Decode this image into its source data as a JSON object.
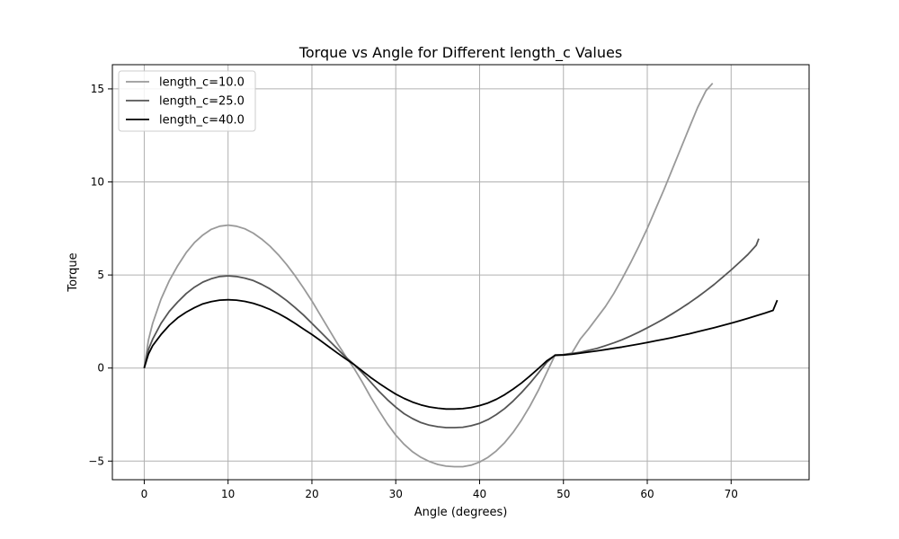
{
  "chart_data": {
    "type": "line",
    "title": "Torque vs Angle for Different length_c Values",
    "xlabel": "Angle (degrees)",
    "ylabel": "Torque",
    "xlim": [
      -3.8,
      79.3
    ],
    "ylim": [
      -6.0,
      16.3
    ],
    "xticks": [
      0,
      10,
      20,
      30,
      40,
      50,
      60,
      70
    ],
    "yticks": [
      -5,
      0,
      5,
      10,
      15
    ],
    "ytick_labels": [
      "−5",
      "0",
      "5",
      "10",
      "15"
    ],
    "grid": true,
    "legend_position": "top-left",
    "series": [
      {
        "name": "length_c=10.0",
        "color": "#999999",
        "points": [
          [
            0,
            0
          ],
          [
            0.5,
            1.5
          ],
          [
            1,
            2.4
          ],
          [
            2,
            3.7
          ],
          [
            3,
            4.7
          ],
          [
            4,
            5.5
          ],
          [
            5,
            6.2
          ],
          [
            6,
            6.75
          ],
          [
            7,
            7.15
          ],
          [
            8,
            7.45
          ],
          [
            9,
            7.62
          ],
          [
            10,
            7.68
          ],
          [
            11,
            7.62
          ],
          [
            12,
            7.48
          ],
          [
            13,
            7.25
          ],
          [
            14,
            6.93
          ],
          [
            15,
            6.55
          ],
          [
            16,
            6.08
          ],
          [
            17,
            5.55
          ],
          [
            18,
            4.95
          ],
          [
            19,
            4.3
          ],
          [
            20,
            3.6
          ],
          [
            21,
            2.85
          ],
          [
            22,
            2.1
          ],
          [
            23,
            1.35
          ],
          [
            24,
            0.65
          ],
          [
            25,
            0.0
          ],
          [
            26,
            -0.75
          ],
          [
            27,
            -1.55
          ],
          [
            28,
            -2.3
          ],
          [
            29,
            -3.0
          ],
          [
            30,
            -3.6
          ],
          [
            31,
            -4.1
          ],
          [
            32,
            -4.5
          ],
          [
            33,
            -4.8
          ],
          [
            34,
            -5.02
          ],
          [
            35,
            -5.18
          ],
          [
            36,
            -5.27
          ],
          [
            37,
            -5.3
          ],
          [
            38,
            -5.3
          ],
          [
            39,
            -5.22
          ],
          [
            40,
            -5.05
          ],
          [
            41,
            -4.8
          ],
          [
            42,
            -4.45
          ],
          [
            43,
            -4.0
          ],
          [
            44,
            -3.45
          ],
          [
            45,
            -2.8
          ],
          [
            46,
            -2.05
          ],
          [
            47,
            -1.2
          ],
          [
            48,
            -0.25
          ],
          [
            49,
            0.7
          ],
          [
            50,
            0.72
          ],
          [
            51,
            0.8
          ],
          [
            52,
            1.55
          ],
          [
            53,
            2.1
          ],
          [
            54,
            2.7
          ],
          [
            55,
            3.3
          ],
          [
            56,
            4.0
          ],
          [
            57,
            4.8
          ],
          [
            58,
            5.65
          ],
          [
            59,
            6.55
          ],
          [
            60,
            7.5
          ],
          [
            61,
            8.55
          ],
          [
            62,
            9.6
          ],
          [
            63,
            10.7
          ],
          [
            64,
            11.8
          ],
          [
            65,
            12.9
          ],
          [
            66,
            14.0
          ],
          [
            67,
            14.9
          ],
          [
            67.8,
            15.3
          ]
        ]
      },
      {
        "name": "length_c=25.0",
        "color": "#555555",
        "points": [
          [
            0,
            0
          ],
          [
            0.5,
            1.0
          ],
          [
            1,
            1.55
          ],
          [
            2,
            2.4
          ],
          [
            3,
            3.05
          ],
          [
            4,
            3.55
          ],
          [
            5,
            4.0
          ],
          [
            6,
            4.35
          ],
          [
            7,
            4.62
          ],
          [
            8,
            4.8
          ],
          [
            9,
            4.92
          ],
          [
            10,
            4.95
          ],
          [
            11,
            4.92
          ],
          [
            12,
            4.83
          ],
          [
            13,
            4.7
          ],
          [
            14,
            4.5
          ],
          [
            15,
            4.25
          ],
          [
            16,
            3.95
          ],
          [
            17,
            3.62
          ],
          [
            18,
            3.25
          ],
          [
            19,
            2.85
          ],
          [
            20,
            2.4
          ],
          [
            21,
            1.95
          ],
          [
            22,
            1.5
          ],
          [
            23,
            1.05
          ],
          [
            24,
            0.6
          ],
          [
            25,
            0.2
          ],
          [
            26,
            -0.25
          ],
          [
            27,
            -0.75
          ],
          [
            28,
            -1.25
          ],
          [
            29,
            -1.7
          ],
          [
            30,
            -2.1
          ],
          [
            31,
            -2.45
          ],
          [
            32,
            -2.72
          ],
          [
            33,
            -2.93
          ],
          [
            34,
            -3.07
          ],
          [
            35,
            -3.15
          ],
          [
            36,
            -3.2
          ],
          [
            37,
            -3.2
          ],
          [
            38,
            -3.18
          ],
          [
            39,
            -3.1
          ],
          [
            40,
            -2.97
          ],
          [
            41,
            -2.77
          ],
          [
            42,
            -2.5
          ],
          [
            43,
            -2.17
          ],
          [
            44,
            -1.77
          ],
          [
            45,
            -1.32
          ],
          [
            46,
            -0.82
          ],
          [
            47,
            -0.27
          ],
          [
            48,
            0.3
          ],
          [
            49,
            0.7
          ],
          [
            50,
            0.72
          ],
          [
            51,
            0.78
          ],
          [
            52,
            0.85
          ],
          [
            53,
            0.95
          ],
          [
            54,
            1.05
          ],
          [
            55,
            1.2
          ],
          [
            56,
            1.35
          ],
          [
            57,
            1.52
          ],
          [
            58,
            1.72
          ],
          [
            59,
            1.93
          ],
          [
            60,
            2.16
          ],
          [
            61,
            2.4
          ],
          [
            62,
            2.65
          ],
          [
            63,
            2.92
          ],
          [
            64,
            3.2
          ],
          [
            65,
            3.5
          ],
          [
            66,
            3.82
          ],
          [
            67,
            4.15
          ],
          [
            68,
            4.5
          ],
          [
            69,
            4.88
          ],
          [
            70,
            5.27
          ],
          [
            71,
            5.68
          ],
          [
            72,
            6.1
          ],
          [
            73,
            6.6
          ],
          [
            73.3,
            6.95
          ]
        ]
      },
      {
        "name": "length_c=40.0",
        "color": "#000000",
        "points": [
          [
            0,
            0
          ],
          [
            0.5,
            0.75
          ],
          [
            1,
            1.2
          ],
          [
            2,
            1.8
          ],
          [
            3,
            2.3
          ],
          [
            4,
            2.7
          ],
          [
            5,
            3.0
          ],
          [
            6,
            3.25
          ],
          [
            7,
            3.45
          ],
          [
            8,
            3.57
          ],
          [
            9,
            3.65
          ],
          [
            10,
            3.67
          ],
          [
            11,
            3.65
          ],
          [
            12,
            3.58
          ],
          [
            13,
            3.48
          ],
          [
            14,
            3.33
          ],
          [
            15,
            3.15
          ],
          [
            16,
            2.93
          ],
          [
            17,
            2.68
          ],
          [
            18,
            2.4
          ],
          [
            19,
            2.1
          ],
          [
            20,
            1.8
          ],
          [
            21,
            1.48
          ],
          [
            22,
            1.15
          ],
          [
            23,
            0.82
          ],
          [
            24,
            0.5
          ],
          [
            25,
            0.2
          ],
          [
            26,
            -0.15
          ],
          [
            27,
            -0.5
          ],
          [
            28,
            -0.82
          ],
          [
            29,
            -1.12
          ],
          [
            30,
            -1.4
          ],
          [
            31,
            -1.63
          ],
          [
            32,
            -1.83
          ],
          [
            33,
            -1.98
          ],
          [
            34,
            -2.09
          ],
          [
            35,
            -2.16
          ],
          [
            36,
            -2.2
          ],
          [
            37,
            -2.2
          ],
          [
            38,
            -2.18
          ],
          [
            39,
            -2.12
          ],
          [
            40,
            -2.02
          ],
          [
            41,
            -1.88
          ],
          [
            42,
            -1.68
          ],
          [
            43,
            -1.43
          ],
          [
            44,
            -1.13
          ],
          [
            45,
            -0.8
          ],
          [
            46,
            -0.43
          ],
          [
            47,
            -0.03
          ],
          [
            48,
            0.38
          ],
          [
            49,
            0.68
          ],
          [
            50,
            0.7
          ],
          [
            51,
            0.74
          ],
          [
            52,
            0.8
          ],
          [
            53,
            0.86
          ],
          [
            54,
            0.92
          ],
          [
            55,
            0.99
          ],
          [
            56,
            1.06
          ],
          [
            57,
            1.13
          ],
          [
            58,
            1.21
          ],
          [
            59,
            1.29
          ],
          [
            60,
            1.37
          ],
          [
            61,
            1.46
          ],
          [
            62,
            1.55
          ],
          [
            63,
            1.64
          ],
          [
            64,
            1.74
          ],
          [
            65,
            1.84
          ],
          [
            66,
            1.95
          ],
          [
            67,
            2.06
          ],
          [
            68,
            2.17
          ],
          [
            69,
            2.29
          ],
          [
            70,
            2.41
          ],
          [
            71,
            2.54
          ],
          [
            72,
            2.67
          ],
          [
            73,
            2.81
          ],
          [
            74,
            2.95
          ],
          [
            75,
            3.1
          ],
          [
            75.5,
            3.65
          ]
        ]
      }
    ]
  }
}
